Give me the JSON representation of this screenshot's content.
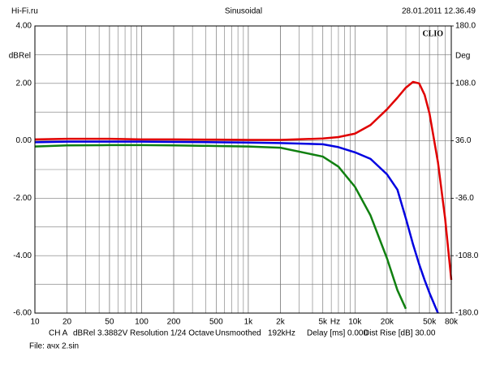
{
  "chart_data": {
    "type": "line",
    "title": "Sinusoidal",
    "source": "Hi-Fi.ru",
    "timestamp": "28.01.2011 12.36.49",
    "brand": "CLIO",
    "ylabel": "dBRel",
    "y2label": "Deg",
    "x_unit": "Hz",
    "xscale": "log",
    "grid": true,
    "x": [
      10,
      20,
      50,
      100,
      200,
      500,
      1000,
      2000,
      5000,
      7000,
      10000,
      14000,
      20000,
      25000,
      30000,
      35000,
      40000,
      45000,
      50000,
      60000,
      70000,
      80000
    ],
    "series": [
      {
        "name": "red",
        "color": "#e00000",
        "values": [
          0.05,
          0.07,
          0.07,
          0.05,
          0.05,
          0.04,
          0.03,
          0.03,
          0.08,
          0.13,
          0.25,
          0.55,
          1.1,
          1.5,
          1.85,
          2.05,
          2.0,
          1.6,
          0.95,
          -0.75,
          -2.7,
          -4.84
        ]
      },
      {
        "name": "blue",
        "color": "#0000e0",
        "values": [
          -0.05,
          -0.03,
          -0.03,
          -0.03,
          -0.04,
          -0.05,
          -0.06,
          -0.08,
          -0.12,
          -0.22,
          -0.4,
          -0.63,
          -1.17,
          -1.7,
          -2.7,
          -3.6,
          -4.3,
          -4.85,
          -5.3,
          -6.0,
          null,
          null
        ]
      },
      {
        "name": "green",
        "color": "#108010",
        "values": [
          -0.2,
          -0.16,
          -0.15,
          -0.15,
          -0.16,
          -0.18,
          -0.2,
          -0.24,
          -0.55,
          -0.9,
          -1.6,
          -2.6,
          -4.1,
          -5.2,
          -5.85,
          null,
          null,
          null,
          null,
          null,
          null,
          null
        ]
      }
    ],
    "xlim": [
      10,
      80000
    ],
    "xticks": [
      10,
      20,
      50,
      100,
      200,
      500,
      {
        "value": 1000,
        "label": "1k"
      },
      {
        "value": 2000,
        "label": "2k"
      },
      {
        "value": 5000,
        "label": "5k"
      },
      {
        "value": 10000,
        "label": "10k"
      },
      {
        "value": 20000,
        "label": "20k"
      },
      {
        "value": 50000,
        "label": "50k"
      },
      {
        "value": 80000,
        "label": "80k"
      }
    ],
    "ylim": [
      -6,
      4
    ],
    "yticks": [
      {
        "value": 4,
        "label": "4.00"
      },
      {
        "value": 2,
        "label": "2.00"
      },
      {
        "value": 0,
        "label": "0.00"
      },
      {
        "value": -2,
        "label": "-2.00"
      },
      {
        "value": -4,
        "label": "-4.00"
      },
      {
        "value": -6,
        "label": "-6.00"
      }
    ],
    "y2lim": [
      -180,
      180
    ],
    "y2ticks": [
      {
        "value": 180,
        "label": "180.0"
      },
      {
        "value": 108,
        "label": "108.0"
      },
      {
        "value": 36,
        "label": "36.0"
      },
      {
        "value": -36,
        "label": "-36.0"
      },
      {
        "value": -108,
        "label": "-108.0"
      },
      {
        "value": -180,
        "label": "-180.0"
      }
    ],
    "info": [
      "CH A",
      "dBRel 3.3882V",
      "Resolution 1/24 Octave",
      "Unsmoothed",
      "192kHz",
      "Delay [ms] 0.000",
      "Dist Rise [dB] 30.00"
    ],
    "file": "File: ачх 2.sin"
  }
}
